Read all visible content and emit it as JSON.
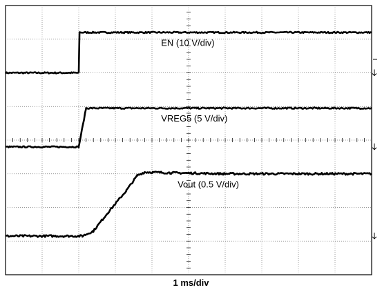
{
  "chart_data": {
    "type": "line",
    "title": "",
    "xlabel": "1 ms/div",
    "ylabel": "",
    "grid": true,
    "divisions": {
      "x": 10,
      "y": 8
    },
    "xlim": [
      0,
      10
    ],
    "ylim": [
      0,
      8
    ],
    "series": [
      {
        "name": "EN (10 V/div)",
        "color": "#000000",
        "noise": 0.02,
        "points": [
          [
            0,
            6.0
          ],
          [
            2.0,
            6.0
          ],
          [
            2.02,
            7.2
          ],
          [
            10,
            7.2
          ]
        ]
      },
      {
        "name": "VREG5 (5 V/div)",
        "color": "#000000",
        "noise": 0.02,
        "points": [
          [
            0,
            3.8
          ],
          [
            2.0,
            3.8
          ],
          [
            2.2,
            4.95
          ],
          [
            10,
            4.95
          ]
        ]
      },
      {
        "name": "Vout (0.5 V/div)",
        "color": "#000000",
        "noise": 0.03,
        "points": [
          [
            0,
            1.15
          ],
          [
            2.1,
            1.15
          ],
          [
            2.4,
            1.3
          ],
          [
            2.8,
            1.85
          ],
          [
            3.3,
            2.5
          ],
          [
            3.6,
            2.95
          ],
          [
            3.8,
            3.05
          ],
          [
            4.5,
            3.03
          ],
          [
            6,
            3.0
          ],
          [
            10,
            3.0
          ]
        ]
      }
    ],
    "label_positions": [
      {
        "x": 4.25,
        "y": 6.8
      },
      {
        "x": 4.25,
        "y": 4.55
      },
      {
        "x": 4.7,
        "y": 2.6
      }
    ]
  }
}
